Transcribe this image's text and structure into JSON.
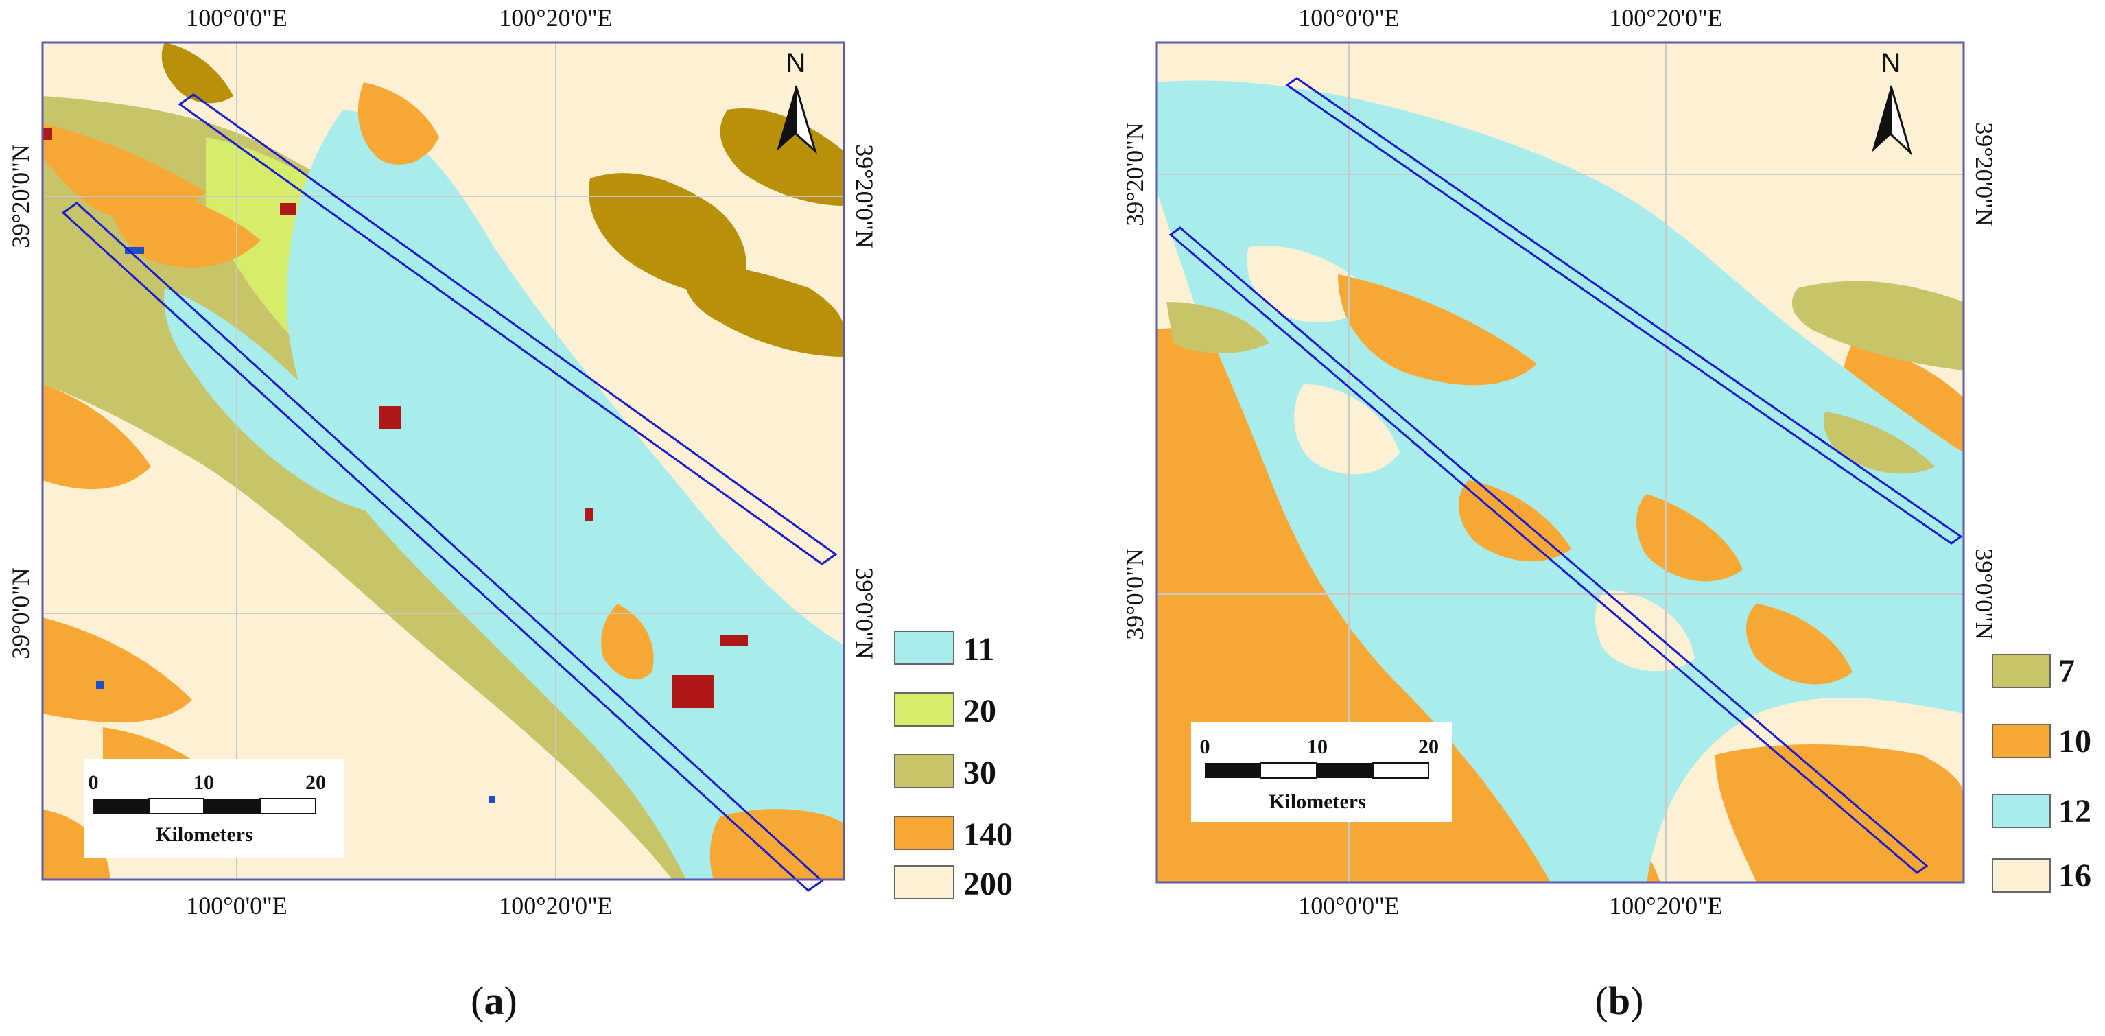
{
  "panels": [
    {
      "id": "a",
      "caption": "a",
      "north_label": "N",
      "top_ticks": [
        "100°0'0\"E",
        "100°20'0\"E"
      ],
      "bottom_ticks": [
        "100°0'0\"E",
        "100°20'0\"E"
      ],
      "left_ticks": [
        "39°20'0\"N",
        "39°0'0\"N"
      ],
      "right_ticks": [
        "39°20'0\"N",
        "39°0'0\"N"
      ],
      "scale": {
        "labels": [
          "0",
          "10",
          "20"
        ],
        "unit": "Kilometers"
      },
      "legend": [
        {
          "label": "11",
          "color": "#a9ecec"
        },
        {
          "label": "20",
          "color": "#d6ec6b"
        },
        {
          "label": "30",
          "color": "#c8c46a"
        },
        {
          "label": "140",
          "color": "#f7a834"
        },
        {
          "label": "200",
          "color": "#fdf1d5"
        }
      ],
      "extra_colors": {
        "dark_olive": "#b8900a",
        "urban": "#b01818",
        "water": "#1a4ecc"
      }
    },
    {
      "id": "b",
      "caption": "b",
      "north_label": "N",
      "top_ticks": [
        "100°0'0\"E",
        "100°20'0\"E"
      ],
      "bottom_ticks": [
        "100°0'0\"E",
        "100°20'0\"E"
      ],
      "left_ticks": [
        "39°20'0\"N",
        "39°0'0\"N"
      ],
      "right_ticks": [
        "39°20'0\"N",
        "39°0'0\"N"
      ],
      "scale": {
        "labels": [
          "0",
          "10",
          "20"
        ],
        "unit": "Kilometers"
      },
      "legend": [
        {
          "label": "7",
          "color": "#c8c46a"
        },
        {
          "label": "10",
          "color": "#f7a834"
        },
        {
          "label": "12",
          "color": "#a9ecec"
        },
        {
          "label": "16",
          "color": "#fdf1d5"
        }
      ]
    }
  ]
}
